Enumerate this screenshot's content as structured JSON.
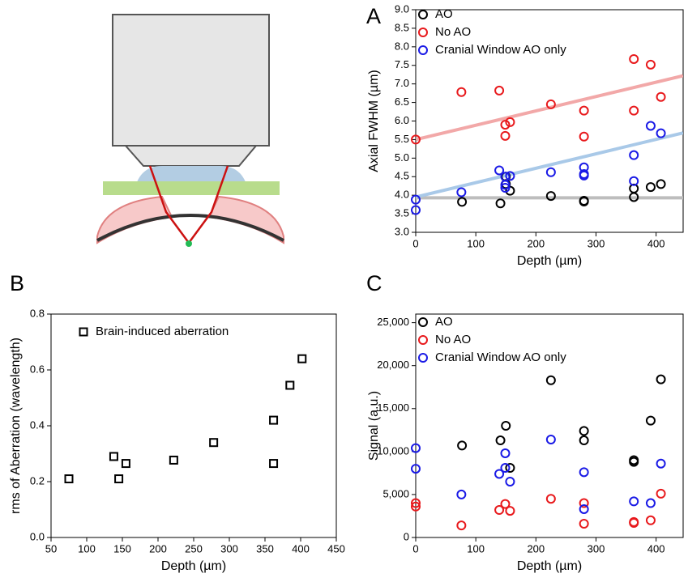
{
  "chart_data": [
    {
      "type": "scatter",
      "panel": "A",
      "x_label": "Depth (µm)",
      "y_label": "Axial FWHM (µm)",
      "xlim": [
        0,
        445
      ],
      "xticks": [
        0,
        100,
        200,
        300,
        400
      ],
      "ylim": [
        3,
        9
      ],
      "yticks": [
        {
          "value": 3,
          "label": "3.0"
        },
        3.5,
        {
          "value": 4,
          "label": "4.0"
        },
        4.5,
        {
          "value": 5,
          "label": "5.0"
        },
        5.5,
        {
          "value": 6,
          "label": "6.0"
        },
        6.5,
        {
          "value": 7,
          "label": "7.0"
        },
        7.5,
        {
          "value": 8,
          "label": "8.0"
        },
        8.5,
        {
          "value": 9,
          "label": "9.0"
        }
      ],
      "legend": "upper left",
      "marker": "circle",
      "series": [
        {
          "name": "AO",
          "color": "#000000",
          "x": [
            77,
            141,
            150,
            150,
            157,
            225,
            280,
            280,
            363,
            363,
            391,
            408
          ],
          "values": [
            3.82,
            3.78,
            4.5,
            4.3,
            4.12,
            3.98,
            3.85,
            3.83,
            4.18,
            3.95,
            4.22,
            4.3
          ]
        },
        {
          "name": "No AO",
          "color": "#e8191c",
          "x": [
            0,
            76,
            139,
            149,
            157,
            149,
            225,
            280,
            280,
            363,
            391,
            363,
            408
          ],
          "values": [
            5.5,
            6.78,
            6.82,
            5.9,
            5.97,
            5.6,
            6.45,
            6.28,
            5.58,
            7.67,
            7.52,
            6.28,
            6.65
          ]
        },
        {
          "name": "Cranial Window AO only",
          "color": "#1a1ae6",
          "x": [
            0,
            0,
            76,
            139,
            149,
            149,
            149,
            157,
            225,
            280,
            280,
            280,
            363,
            363,
            391,
            408
          ],
          "values": [
            3.88,
            3.6,
            4.08,
            4.67,
            4.5,
            4.28,
            4.2,
            4.52,
            4.62,
            4.75,
            4.57,
            4.53,
            5.08,
            4.38,
            5.87,
            5.67
          ]
        }
      ],
      "fit_lines": [
        {
          "color": "#bdbdbd",
          "x": [
            0,
            445
          ],
          "values": [
            3.93,
            3.93
          ]
        },
        {
          "color": "#f2a8a8",
          "x": [
            0,
            445
          ],
          "values": [
            5.5,
            7.22
          ]
        },
        {
          "color": "#a9c9e8",
          "x": [
            0,
            445
          ],
          "values": [
            3.95,
            5.68
          ]
        }
      ]
    },
    {
      "type": "scatter",
      "panel": "B",
      "x_label": "Depth (µm)",
      "y_label": "rms of Aberration (wavelength)",
      "xlim": [
        50,
        450
      ],
      "xticks": [
        50,
        100,
        150,
        200,
        250,
        300,
        350,
        400,
        450
      ],
      "ylim": [
        0,
        0.8
      ],
      "yticks": [
        {
          "value": 0,
          "label": "0.0"
        },
        0.2,
        0.4,
        0.6,
        0.8
      ],
      "legend": "upper left",
      "marker": "square",
      "series": [
        {
          "name": "Brain-induced aberration",
          "color": "#000000",
          "x": [
            75,
            138,
            145,
            155,
            222,
            278,
            362,
            362,
            385,
            402
          ],
          "values": [
            0.21,
            0.29,
            0.21,
            0.265,
            0.277,
            0.34,
            0.42,
            0.265,
            0.545,
            0.64
          ]
        }
      ]
    },
    {
      "type": "scatter",
      "panel": "C",
      "x_label": "Depth (µm)",
      "y_label": "Signal (a.u.)",
      "xlim": [
        0,
        445
      ],
      "xticks": [
        0,
        100,
        200,
        300,
        400
      ],
      "ylim": [
        0,
        26000
      ],
      "yticks": [
        0,
        {
          "value": 5000,
          "label": "5,000"
        },
        {
          "value": 10000,
          "label": "10,000"
        },
        {
          "value": 15000,
          "label": "15,000"
        },
        {
          "value": 20000,
          "label": "20,000"
        },
        {
          "value": 25000,
          "label": "25,000"
        }
      ],
      "legend": "upper left",
      "marker": "circle",
      "series": [
        {
          "name": "AO",
          "color": "#000000",
          "x": [
            77,
            141,
            150,
            157,
            225,
            280,
            280,
            363,
            363,
            391,
            408
          ],
          "values": [
            10700,
            11300,
            13000,
            8100,
            18300,
            12400,
            11300,
            9000,
            8800,
            13600,
            18400
          ]
        },
        {
          "name": "No AO",
          "color": "#e8191c",
          "x": [
            0,
            0,
            76,
            139,
            149,
            157,
            225,
            280,
            280,
            363,
            363,
            391,
            408
          ],
          "values": [
            4000,
            3600,
            1400,
            3200,
            3900,
            3100,
            4500,
            4000,
            1600,
            1800,
            1700,
            2000,
            5100
          ]
        },
        {
          "name": "Cranial Window AO only",
          "color": "#1a1ae6",
          "x": [
            0,
            0,
            76,
            139,
            149,
            149,
            157,
            225,
            280,
            280,
            363,
            391,
            408
          ],
          "values": [
            10400,
            8000,
            5000,
            7400,
            9800,
            8100,
            6500,
            11400,
            7600,
            3300,
            4200,
            4000,
            8600
          ]
        }
      ]
    }
  ]
}
